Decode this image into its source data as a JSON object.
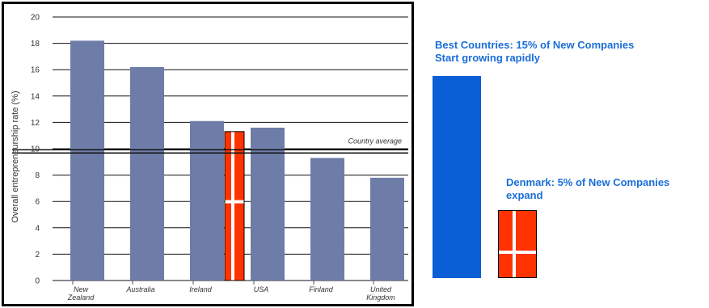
{
  "chart_data": {
    "type": "bar",
    "ylabel": "Overall entrepreneurship rate (%)",
    "ylim": [
      0,
      20
    ],
    "yticks": [
      "0",
      "2",
      "4",
      "6",
      "8",
      "10",
      "12",
      "14",
      "16",
      "18",
      "20"
    ],
    "grid": true,
    "categories": [
      "New Zealand",
      "Australia",
      "Ireland",
      "USA",
      "Finland",
      "United Kingdom"
    ],
    "category_lines": [
      [
        "New",
        "Zealand"
      ],
      [
        "Australia"
      ],
      [
        "Ireland"
      ],
      [
        "USA"
      ],
      [
        "Finland"
      ],
      [
        "United",
        "Kingdom"
      ]
    ],
    "values": [
      18.2,
      16.2,
      12.1,
      11.6,
      9.3,
      7.8
    ],
    "bar_color": "#6e7ca8",
    "reference_line": {
      "label": "Country average",
      "value": 9.8
    },
    "overlay_flag": {
      "value": 11.3,
      "color": "#ff3300"
    }
  },
  "callouts": {
    "best": {
      "line1": "Best Countries: 15% of New Companies",
      "line2": "Start growing rapidly",
      "value": 15,
      "color": "#0a5ed6"
    },
    "denmark": {
      "line1": "Denmark: 5% of New Companies",
      "line2": "expand",
      "value": 5,
      "flag_color": "#ff3300"
    }
  }
}
